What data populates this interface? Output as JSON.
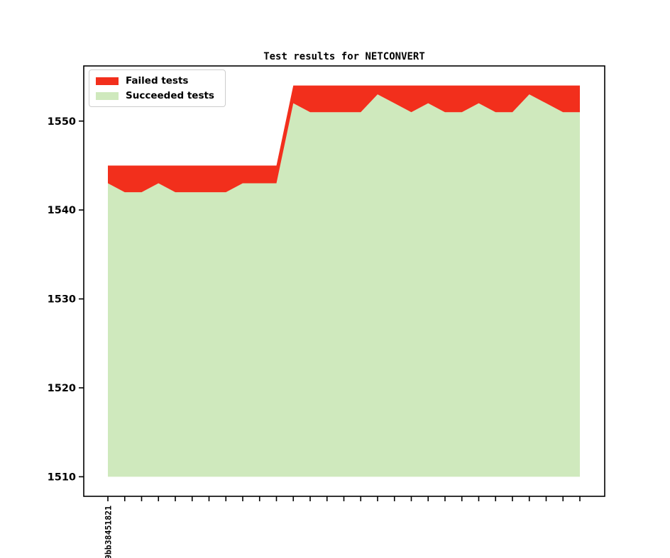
{
  "figure": {
    "title": "Test results for NETCONVERT",
    "background": "#ffffff"
  },
  "legend": {
    "position": "upper left",
    "items": [
      {
        "label": "Failed tests",
        "color": "#f22f1c"
      },
      {
        "label": "Succeeded tests",
        "color": "#cfe9bd"
      }
    ]
  },
  "chart_data": {
    "type": "area",
    "stacked": true,
    "title": "Test results for NETCONVERT",
    "n_points": 29,
    "x_tick_labels": [
      "9bb38451821"
    ],
    "x_label_rotation": 90,
    "baseline": 1510,
    "ylim": [
      1507.8,
      1556.2
    ],
    "yticks": [
      1510,
      1520,
      1530,
      1540,
      1550
    ],
    "grid": false,
    "legend_position": "upper left",
    "series": [
      {
        "name": "Succeeded tests",
        "color": "#cfe9bd",
        "values": [
          1543,
          1542,
          1542,
          1543,
          1542,
          1542,
          1542,
          1542,
          1543,
          1543,
          1543,
          1552,
          1551,
          1551,
          1551,
          1551,
          1553,
          1552,
          1551,
          1552,
          1551,
          1551,
          1552,
          1551,
          1551,
          1553,
          1552,
          1551,
          1551
        ]
      },
      {
        "name": "Failed tests",
        "color": "#f22f1c",
        "values": [
          2,
          3,
          3,
          2,
          3,
          3,
          3,
          3,
          2,
          2,
          2,
          2,
          3,
          3,
          3,
          3,
          1,
          2,
          3,
          2,
          3,
          3,
          2,
          3,
          3,
          1,
          2,
          3,
          3
        ]
      }
    ],
    "totals": [
      1545,
      1545,
      1545,
      1545,
      1545,
      1545,
      1545,
      1545,
      1545,
      1545,
      1545,
      1554,
      1554,
      1554,
      1554,
      1554,
      1554,
      1554,
      1554,
      1554,
      1554,
      1554,
      1554,
      1554,
      1554,
      1554,
      1554,
      1554,
      1554
    ]
  }
}
